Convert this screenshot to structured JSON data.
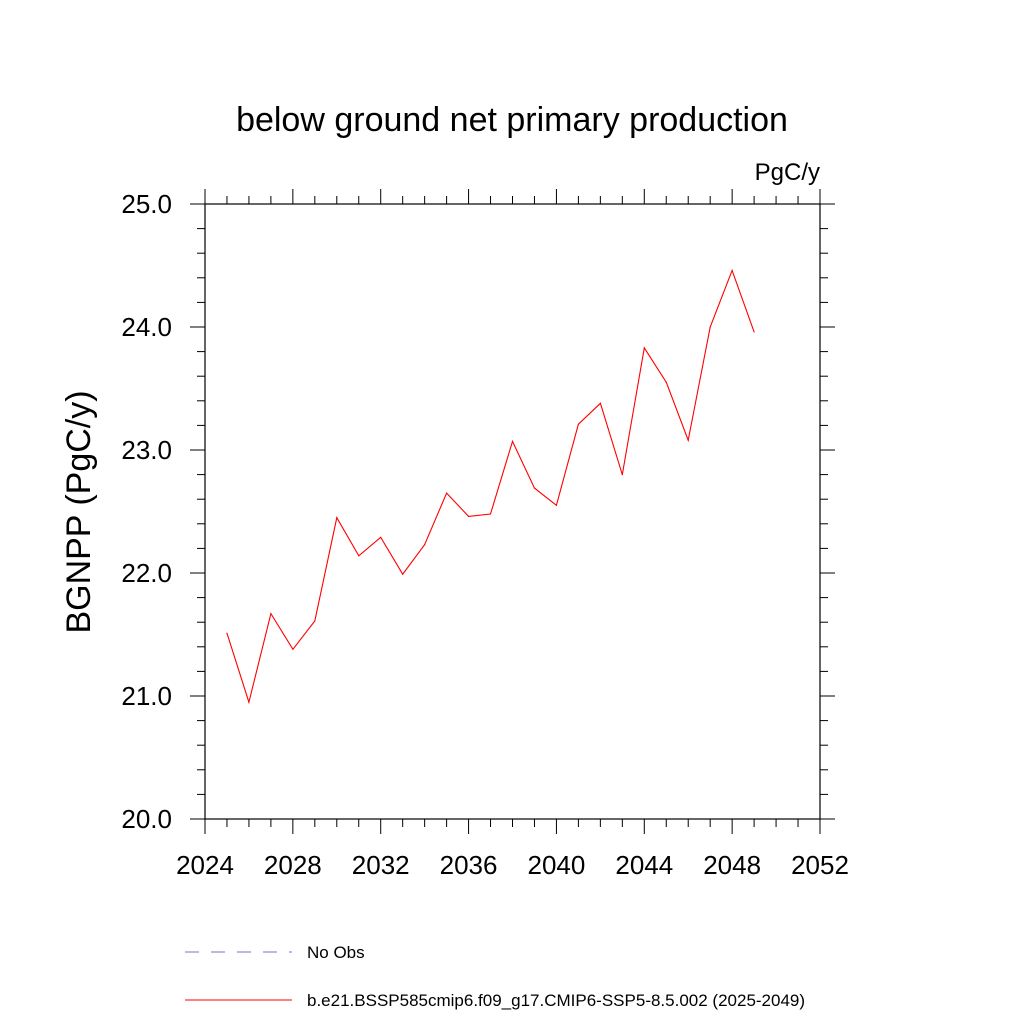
{
  "chart_data": {
    "type": "line",
    "title": "below ground net primary production",
    "units": "PgC/y",
    "xlabel": "",
    "ylabel": "BGNPP  (PgC/y)",
    "xlim": [
      2024,
      2052
    ],
    "ylim": [
      20.0,
      25.0
    ],
    "x_ticks": [
      "2024",
      "2028",
      "2032",
      "2036",
      "2040",
      "2044",
      "2048",
      "2052"
    ],
    "y_ticks": [
      "20.0",
      "21.0",
      "22.0",
      "23.0",
      "24.0",
      "25.0"
    ],
    "legend_position": "bottom",
    "series": [
      {
        "name": "No Obs",
        "color": "#7b6fc8",
        "dash": true,
        "x": [],
        "values": []
      },
      {
        "name": "b.e21.BSSP585cmip6.f09_g17.CMIP6-SSP5-8.5.002 (2025-2049)",
        "color": "#ff0000",
        "dash": false,
        "x": [
          2025,
          2026,
          2027,
          2028,
          2029,
          2030,
          2031,
          2032,
          2033,
          2034,
          2035,
          2036,
          2037,
          2038,
          2039,
          2040,
          2041,
          2042,
          2043,
          2044,
          2045,
          2046,
          2047,
          2048,
          2049
        ],
        "values": [
          21.51,
          20.95,
          21.67,
          21.38,
          21.61,
          22.45,
          22.14,
          22.29,
          21.99,
          22.23,
          22.65,
          22.46,
          22.48,
          23.07,
          22.69,
          22.55,
          23.21,
          23.38,
          22.8,
          23.83,
          23.55,
          23.08,
          24.0,
          24.46,
          23.96
        ]
      }
    ]
  }
}
